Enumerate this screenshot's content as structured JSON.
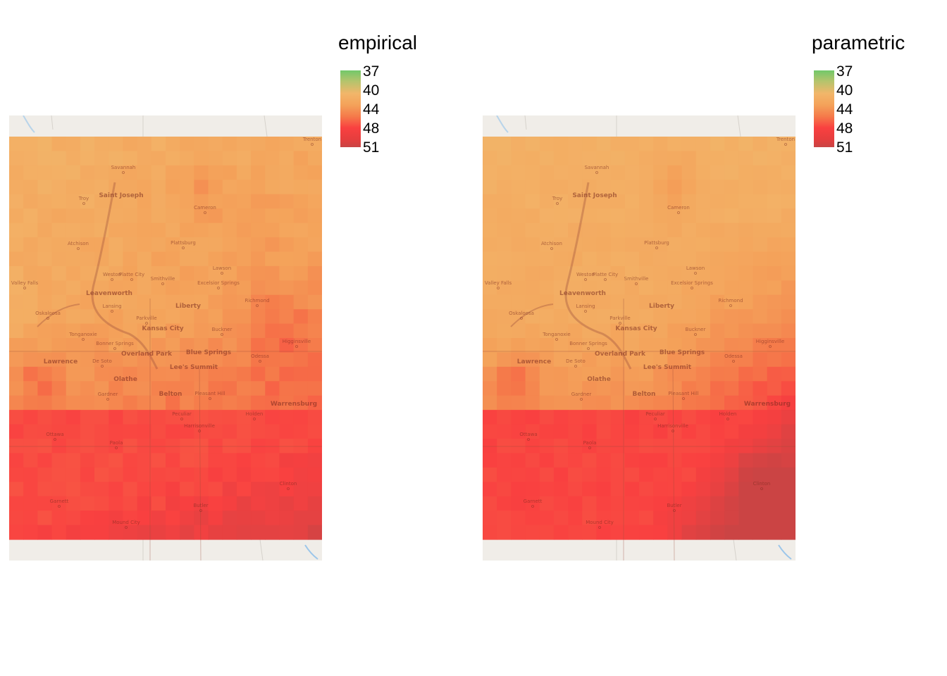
{
  "panels": [
    {
      "id": "empirical",
      "legend": {
        "title": "empirical",
        "ticks": [
          "37",
          "40",
          "44",
          "48",
          "51"
        ]
      }
    },
    {
      "id": "parametric",
      "legend": {
        "title": "parametric",
        "ticks": [
          "37",
          "40",
          "44",
          "48",
          "51"
        ]
      }
    }
  ],
  "basemap_labels": [
    "Trenton",
    "Savannah",
    "Saint Joseph",
    "Troy",
    "Cameron",
    "Atchison",
    "Plattsburg",
    "Weston",
    "Platte City",
    "Smithville",
    "Lawson",
    "Valley Falls",
    "Excelsior Springs",
    "Leavenworth",
    "Lansing",
    "Liberty",
    "Richmond",
    "Oskaloosa",
    "Parkville",
    "Kansas City",
    "Buckner",
    "Tonganoxie",
    "Higginsville",
    "Bonner Springs",
    "Overland Park",
    "Blue Springs",
    "Lawrence",
    "De Soto",
    "Odessa",
    "Lee's Summit",
    "Olathe",
    "Gardner",
    "Belton",
    "Pleasant Hill",
    "Warrensburg",
    "Peculiar",
    "Holden",
    "Harrisonville",
    "Ottawa",
    "Paola",
    "Clinton",
    "Garnett",
    "Butler",
    "Mound City"
  ],
  "colors": {
    "scale_low": "#72c86a",
    "scale_mid": "#f2b66a",
    "scale_high": "#f94040",
    "scale_max": "#c84444",
    "basemap": "#f0ede8"
  }
}
